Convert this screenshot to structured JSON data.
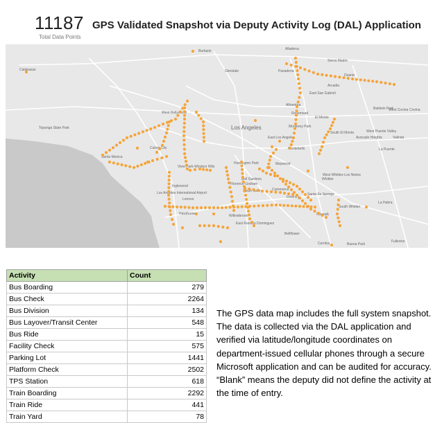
{
  "header": {
    "total_value": "11187",
    "total_caption": "Total Data Points",
    "title": "GPS Validated Snapshot via Deputy Activity Log (DAL) Application"
  },
  "map": {
    "colors": {
      "land": "#e8e8e8",
      "water": "#c9c9c9",
      "road": "#ffffff",
      "dot": "#f5a43a",
      "label": "#666666"
    },
    "places": [
      "Burbank",
      "Glendale",
      "Pasadena",
      "Altadena",
      "Sierra Madre",
      "Duarte",
      "Arcadia",
      "Calabasas",
      "East San Gabriel",
      "Alhambra",
      "Rosemead",
      "El Monte",
      "Baldwin Park",
      "West Covina",
      "Covina",
      "West Hollywood",
      "Los Angeles",
      "Monterey Park",
      "South El Monte",
      "West Puente Valley",
      "Avocado Heights",
      "Valinda",
      "Culver City",
      "Santa Monica",
      "East Los Angeles",
      "Montebello",
      "La Puente",
      "View Park-Windsor Hills",
      "Huntington Park",
      "Maywood",
      "Bell Gardens",
      "Commerce",
      "Inglewood",
      "Florence-Graham",
      "South Gate",
      "West Whittier-Los Nietos",
      "Whittier",
      "Lennox",
      "Los Angeles International Airport",
      "Santa Fe Springs",
      "Downey",
      "La Habra",
      "Hawthorne",
      "Norwalk",
      "South Whittier",
      "Willowbrook",
      "East Rancho Dominguez",
      "Bellflower",
      "Cerritos",
      "Buena Park",
      "Fullerton",
      "Topanga State Park"
    ]
  },
  "table": {
    "headers": [
      "Activity",
      "Count"
    ],
    "rows": [
      [
        "Bus Boarding",
        "279"
      ],
      [
        "Bus Check",
        "2264"
      ],
      [
        "Bus Division",
        "134"
      ],
      [
        "Bus Layover/Transit Center",
        "548"
      ],
      [
        "Bus Ride",
        "15"
      ],
      [
        "Facility Check",
        "575"
      ],
      [
        "Parking Lot",
        "1441"
      ],
      [
        "Platform Check",
        "2502"
      ],
      [
        "TPS Station",
        "618"
      ],
      [
        "Train Boarding",
        "2292"
      ],
      [
        "Train Ride",
        "441"
      ],
      [
        "Train Yard",
        "78"
      ]
    ]
  },
  "note": {
    "text": "The GPS data map includes the full system snapshot. The data is collected via the DAL application and verified via latitude/longitude coordinates on department-issued cellular phones through a secure Microsoft application and can be audited for accuracy. “Blank” means the deputy did not define the activity at the time of entry."
  }
}
